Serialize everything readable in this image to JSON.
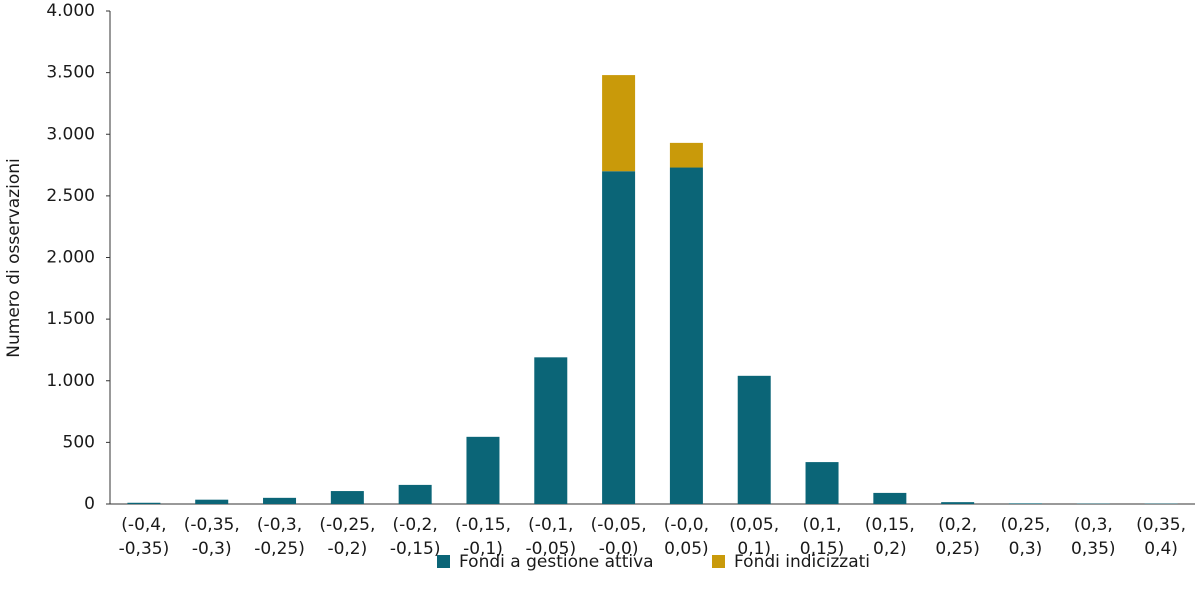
{
  "chart_data": {
    "type": "bar",
    "stacked": true,
    "y_label": "Numero di osservazioni",
    "categories": [
      "(-0,4, -0,35)",
      "(-0,35, -0,3)",
      "(-0,3, -0,25)",
      "(-0,25, -0,2)",
      "(-0,2, -0,15)",
      "(-0,15, -0,1)",
      "(-0,1, -0,05)",
      "(-0,05, -0,0)",
      "(-0,0, 0,05)",
      "(0,05, 0,1)",
      "(0,1, 0,15)",
      "(0,15, 0,2)",
      "(0,2, 0,25)",
      "(0,25, 0,3)",
      "(0,3, 0,35)",
      "(0,35, 0,4)"
    ],
    "series": [
      {
        "name": "Fondi a gestione attiva",
        "color": "#0b6577",
        "values": [
          10,
          35,
          50,
          105,
          155,
          545,
          1190,
          2700,
          2730,
          1040,
          340,
          90,
          15,
          5,
          3,
          3
        ]
      },
      {
        "name": "Fondi indicizzati",
        "color": "#c99a0a",
        "values": [
          0,
          0,
          0,
          0,
          0,
          0,
          0,
          780,
          200,
          0,
          0,
          0,
          0,
          0,
          0,
          0
        ]
      }
    ],
    "ylim": [
      0,
      4000
    ],
    "yticks": [
      0,
      500,
      {
        "value": 1000,
        "label": "1.000"
      },
      {
        "value": 1500,
        "label": "1.500"
      },
      {
        "value": 2000,
        "label": "2.000"
      },
      {
        "value": 2500,
        "label": "2.500"
      },
      {
        "value": 3000,
        "label": "3.000"
      },
      {
        "value": 3500,
        "label": "3.500"
      },
      {
        "value": 4000,
        "label": "4.000"
      }
    ],
    "grid": false,
    "legend": "bottom"
  }
}
